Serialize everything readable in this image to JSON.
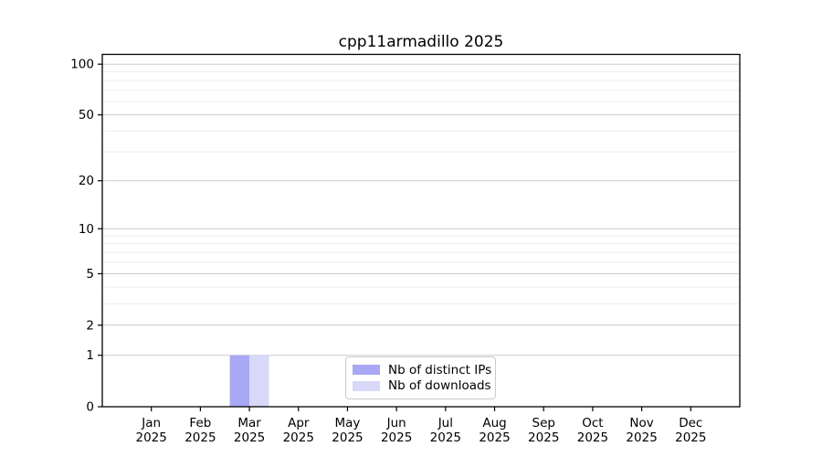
{
  "figure": {
    "title": "cpp11armadillo 2025"
  },
  "legend": {
    "items": [
      {
        "label": "Nb of distinct IPs",
        "color": "#a8a8f4"
      },
      {
        "label": "Nb of downloads",
        "color": "#d8d8f8"
      }
    ]
  },
  "chart_data": {
    "type": "bar",
    "title": "cpp11armadillo 2025",
    "categories": [
      "Jan",
      "Feb",
      "Mar",
      "Apr",
      "May",
      "Jun",
      "Jul",
      "Aug",
      "Sep",
      "Oct",
      "Nov",
      "Dec"
    ],
    "category_year": "2025",
    "series": [
      {
        "name": "Nb of distinct IPs",
        "color": "#a8a8f4",
        "values": [
          0,
          0,
          1,
          0,
          0,
          0,
          0,
          0,
          0,
          0,
          0,
          0
        ]
      },
      {
        "name": "Nb of downloads",
        "color": "#d8d8f8",
        "values": [
          0,
          0,
          1,
          0,
          0,
          0,
          0,
          0,
          0,
          0,
          0,
          0
        ]
      }
    ],
    "xlabel": "",
    "ylabel": "",
    "y_scale": "log10(value+1)",
    "ylim": [
      0,
      114
    ],
    "y_major_ticks": [
      0,
      1,
      2,
      5,
      10,
      20,
      50,
      100
    ],
    "y_minor_gridlines": [
      3,
      4,
      6,
      7,
      8,
      9,
      30,
      40,
      60,
      70,
      80,
      90
    ],
    "grid": "horizontal",
    "legend_position": "lower-center",
    "colors": {
      "major_grid": "#cccccc",
      "minor_grid": "#ededed",
      "axis": "#000000",
      "background": "#ffffff"
    }
  }
}
